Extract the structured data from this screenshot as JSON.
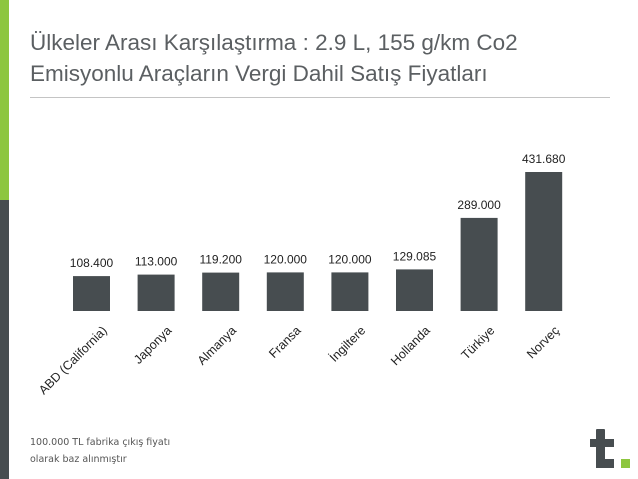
{
  "title_lines": [
    "Ülkeler Arası Karşılaştırma : 2.9 L, 155 g/km Co2",
    "Emisyonlu Araçların Vergi Dahil Satış Fiyatları"
  ],
  "footnote_lines": [
    "100.000 TL  fabrika çıkış fiyatı",
    "olarak baz alınmıştır"
  ],
  "logo": {
    "icon": "t-letter-logo-icon",
    "color": "#474d50",
    "dot_color": "#8dc63f"
  },
  "colors": {
    "accent_green": "#8dc63f",
    "accent_dark": "#474d50",
    "bar": "#474d50"
  },
  "chart_data": {
    "type": "bar",
    "title": "",
    "xlabel": "",
    "ylabel": "",
    "ylim": [
      0,
      431680
    ],
    "categories": [
      "ABD (California)",
      "Japonya",
      "Almanya",
      "Fransa",
      "İngiltere",
      "Hollanda",
      "Türkiye",
      "Norveç"
    ],
    "values": [
      108400,
      113000,
      119200,
      120000,
      120000,
      129085,
      289000,
      431680
    ],
    "value_labels": [
      "108.400",
      "113.000",
      "119.200",
      "120.000",
      "120.000",
      "129.085",
      "289.000",
      "431.680"
    ],
    "bar_color": "#474d50",
    "grid": false,
    "legend": "none"
  }
}
